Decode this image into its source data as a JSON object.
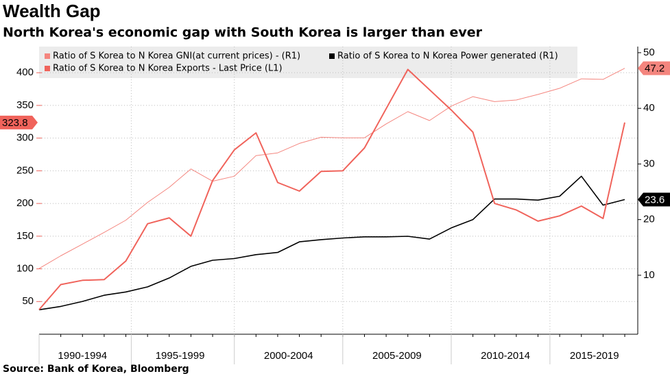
{
  "chart_data": {
    "type": "line",
    "title": "Wealth Gap",
    "subtitle": "North Korea's economic gap with South Korea is larger than ever",
    "source": "Source: Bank of Korea, Bloomberg",
    "x": [
      1990,
      1991,
      1992,
      1993,
      1994,
      1995,
      1996,
      1997,
      1998,
      1999,
      2000,
      2001,
      2002,
      2003,
      2004,
      2005,
      2006,
      2007,
      2008,
      2009,
      2010,
      2011,
      2012,
      2013,
      2014,
      2015,
      2016,
      2017
    ],
    "xlim": [
      1990,
      2017.6
    ],
    "xticks": [
      {
        "value": 1992,
        "label": "1990-1994"
      },
      {
        "value": 1996.5,
        "label": "1995-1999"
      },
      {
        "value": 2001.5,
        "label": "2000-2004"
      },
      {
        "value": 2006.5,
        "label": "2005-2009"
      },
      {
        "value": 2011.5,
        "label": "2010-2014"
      },
      {
        "value": 2015.6,
        "label": "2015-2019"
      }
    ],
    "ylim": [
      0,
      440
    ],
    "yticks": [
      50,
      100,
      150,
      200,
      250,
      300,
      350,
      400
    ],
    "y2lim": [
      -0.6,
      51.1
    ],
    "y2ticks": [
      10,
      20,
      30,
      40,
      50
    ],
    "grid": true,
    "series": [
      {
        "name": "Ratio of S Korea to N Korea GNI(at current prices) - (R1)",
        "color": "#f4857e",
        "linewidth": 1,
        "axis": "y2",
        "values": [
          11.2,
          13.5,
          15.6,
          17.7,
          19.9,
          23.1,
          25.8,
          29.1,
          26.9,
          27.8,
          31.5,
          32.0,
          33.7,
          34.8,
          34.7,
          34.7,
          37.2,
          39.4,
          37.8,
          40.4,
          42.1,
          41.2,
          41.5,
          42.5,
          43.6,
          45.3,
          45.2,
          47.2
        ]
      },
      {
        "name": "Ratio of S Korea to N Korea Power generated (R1)",
        "color": "#000000",
        "linewidth": 1.6,
        "axis": "y2",
        "values": [
          3.8,
          4.4,
          5.3,
          6.4,
          7.0,
          7.9,
          9.5,
          11.6,
          12.7,
          13.0,
          13.7,
          14.1,
          16.0,
          16.4,
          16.7,
          16.9,
          16.9,
          17.0,
          16.5,
          18.5,
          20.0,
          23.7,
          23.7,
          23.5,
          24.2,
          27.8,
          22.6,
          23.6
        ]
      },
      {
        "name": "Ratio of S Korea to N Korea Exports - Last Price (L1)",
        "color": "#f0635b",
        "linewidth": 2,
        "axis": "y",
        "values": [
          37.6,
          76,
          82.5,
          83.5,
          112,
          169,
          178,
          150,
          235,
          282,
          308,
          232,
          219,
          249,
          250,
          285,
          345,
          405,
          374,
          343,
          309,
          200,
          190,
          173,
          181,
          196,
          177,
          323.8
        ]
      }
    ]
  }
}
